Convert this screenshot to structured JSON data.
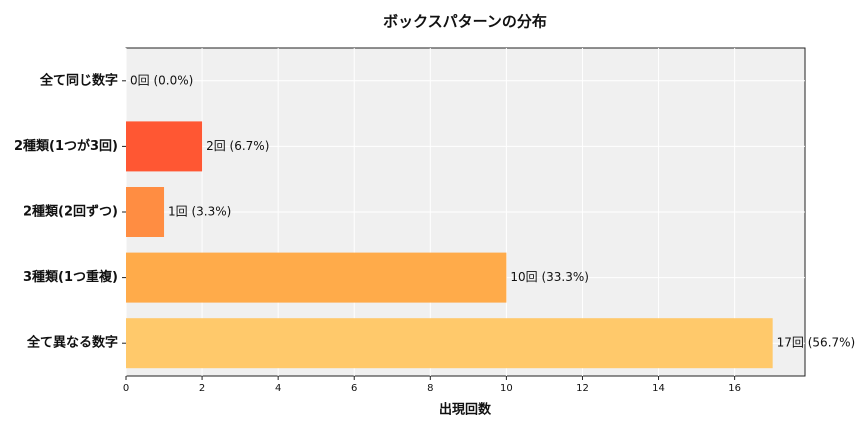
{
  "chart_data": {
    "type": "barh",
    "title": "ボックスパターンの分布",
    "xlabel": "出現回数",
    "categories": [
      "全て同じ数字",
      "2種類(1つが3回)",
      "2種類(2回ずつ)",
      "3種類(1つ重複)",
      "全て異なる数字"
    ],
    "values": [
      0,
      2,
      1,
      10,
      17
    ],
    "value_labels": [
      "0回 (0.0%)",
      "2回 (6.7%)",
      "1回 (3.3%)",
      "10回 (33.3%)",
      "17回 (56.7%)"
    ],
    "colors": [
      "#ff3d2e",
      "#ff5733",
      "#ff8d42",
      "#ffab4a",
      "#ffc96b"
    ],
    "xlim": [
      0,
      17.85
    ],
    "xticks": [
      0,
      2,
      4,
      6,
      8,
      10,
      12,
      14,
      16
    ],
    "grid": true
  }
}
